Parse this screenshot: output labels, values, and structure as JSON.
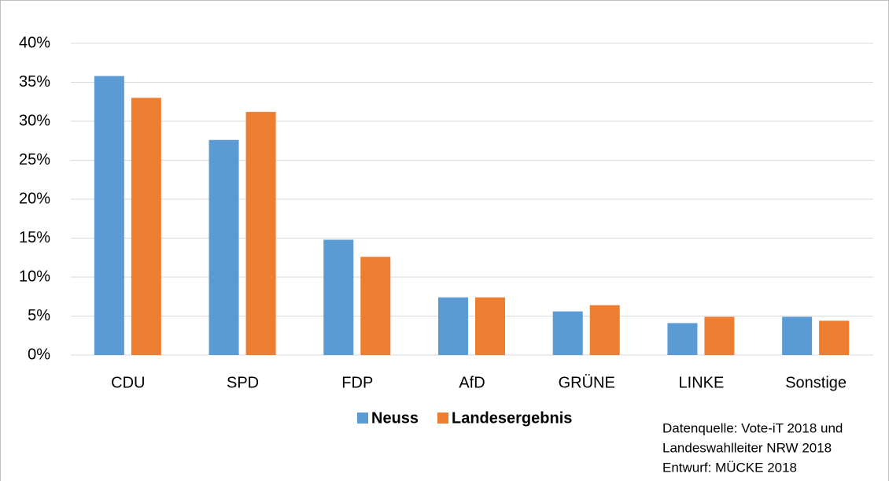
{
  "chart_data": {
    "type": "bar",
    "categories": [
      "CDU",
      "SPD",
      "FDP",
      "AfD",
      "GRÜNE",
      "LINKE",
      "Sonstige"
    ],
    "series": [
      {
        "name": "Neuss",
        "color": "#5b9bd5",
        "values": [
          35.8,
          27.6,
          14.8,
          7.4,
          5.6,
          4.1,
          4.9
        ]
      },
      {
        "name": "Landesergebnis",
        "color": "#ed7d31",
        "values": [
          33.0,
          31.2,
          12.6,
          7.4,
          6.4,
          4.9,
          4.4
        ]
      }
    ],
    "ylim": [
      0,
      40
    ],
    "yticks": [
      {
        "value": 0,
        "label": "0%"
      },
      {
        "value": 5,
        "label": "5%"
      },
      {
        "value": 10,
        "label": "10%"
      },
      {
        "value": 15,
        "label": "15%"
      },
      {
        "value": 20,
        "label": "20%"
      },
      {
        "value": 25,
        "label": "25%"
      },
      {
        "value": 30,
        "label": "30%"
      },
      {
        "value": 35,
        "label": "35%"
      },
      {
        "value": 40,
        "label": "40%"
      }
    ],
    "grid": true,
    "legend": "bottom",
    "annotation": [
      "Datenquelle: Vote-iT 2018 und",
      "Landeswahlleiter NRW 2018",
      "Entwurf: MÜCKE 2018"
    ]
  }
}
